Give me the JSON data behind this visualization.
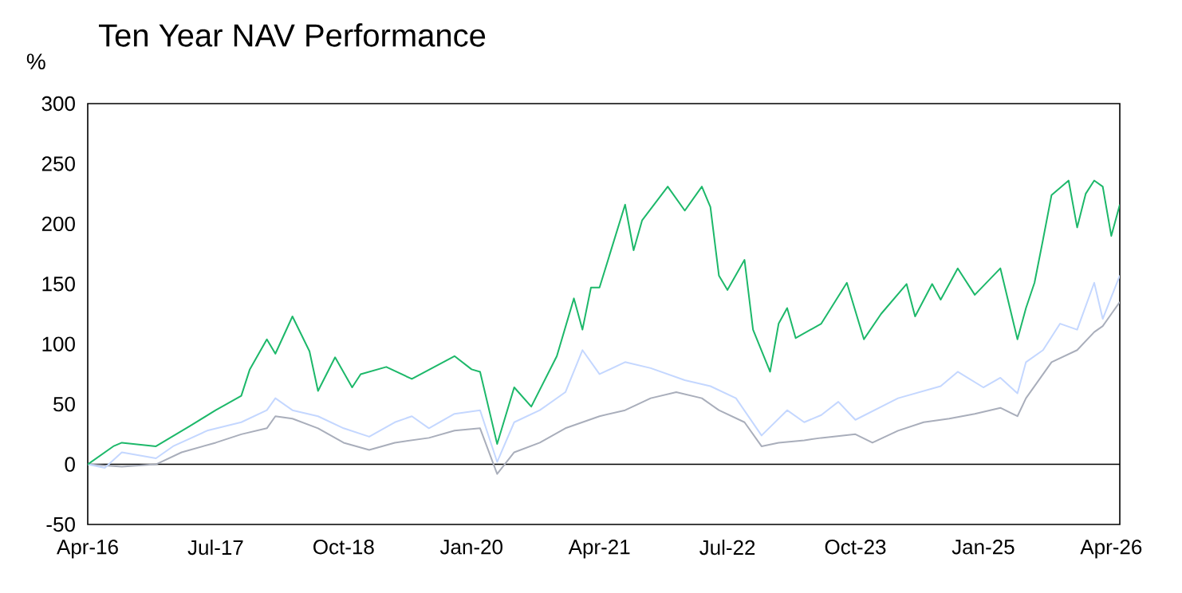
{
  "chart_data": {
    "type": "line",
    "title": "Ten Year NAV Performance",
    "ylabel": "%",
    "xlim": [
      "2016-04",
      "2026-05"
    ],
    "xticks": [
      {
        "value": "2016-04",
        "label": "Apr-16"
      },
      {
        "value": "2017-07",
        "label": "Jul-17"
      },
      {
        "value": "2018-10",
        "label": "Oct-18"
      },
      {
        "value": "2020-01",
        "label": "Jan-20"
      },
      {
        "value": "2021-04",
        "label": "Apr-21"
      },
      {
        "value": "2022-07",
        "label": "Jul-22"
      },
      {
        "value": "2023-10",
        "label": "Oct-23"
      },
      {
        "value": "2025-01",
        "label": "Jan-25"
      },
      {
        "value": "2026-04",
        "label": "Apr-26"
      }
    ],
    "ylim": [
      -50,
      300
    ],
    "yticks": [
      -50,
      0,
      50,
      100,
      150,
      200,
      250,
      300
    ],
    "grid": false,
    "marker": "none",
    "line_style": "solid",
    "ref_lines": [
      {
        "axis": "y",
        "value": 0,
        "color": "#000000"
      }
    ],
    "series": [
      {
        "color": "#1db86a",
        "x": [
          "2016-04",
          "2016-07",
          "2016-08",
          "2016-12",
          "2017-04",
          "2017-07",
          "2017-10",
          "2017-11",
          "2018-01",
          "2018-02",
          "2018-04",
          "2018-06",
          "2018-07",
          "2018-09",
          "2018-11",
          "2018-12",
          "2019-03",
          "2019-06",
          "2019-11",
          "2020-01",
          "2020-02",
          "2020-04",
          "2020-06",
          "2020-08",
          "2020-11",
          "2021-01",
          "2021-02",
          "2021-03",
          "2021-04",
          "2021-07",
          "2021-08",
          "2021-09",
          "2021-12",
          "2022-02",
          "2022-04",
          "2022-05",
          "2022-06",
          "2022-07",
          "2022-09",
          "2022-10",
          "2022-12",
          "2023-01",
          "2023-02",
          "2023-03",
          "2023-06",
          "2023-09",
          "2023-11",
          "2024-01",
          "2024-04",
          "2024-05",
          "2024-07",
          "2024-08",
          "2024-10",
          "2024-12",
          "2025-03",
          "2025-05",
          "2025-06",
          "2025-07",
          "2025-08",
          "2025-09",
          "2025-11",
          "2025-12",
          "2026-01",
          "2026-02",
          "2026-03",
          "2026-04",
          "2026-05"
        ],
        "values": [
          0,
          15,
          18,
          15,
          32,
          45,
          57,
          79,
          104,
          92,
          123,
          94,
          61,
          89,
          64,
          75,
          81,
          71,
          90,
          79,
          77,
          17,
          64,
          48,
          90,
          138,
          112,
          147,
          147,
          216,
          178,
          203,
          231,
          211,
          231,
          214,
          157,
          145,
          170,
          112,
          77,
          117,
          130,
          105,
          117,
          151,
          104,
          125,
          150,
          123,
          150,
          137,
          163,
          141,
          163,
          104,
          130,
          151,
          187,
          224,
          236,
          197,
          225,
          236,
          231,
          190,
          216
        ]
      },
      {
        "color": "#c4d7ff",
        "x": [
          "2016-04",
          "2016-06",
          "2016-08",
          "2016-12",
          "2017-02",
          "2017-06",
          "2017-10",
          "2018-01",
          "2018-02",
          "2018-04",
          "2018-07",
          "2018-10",
          "2019-01",
          "2019-04",
          "2019-06",
          "2019-08",
          "2019-11",
          "2020-02",
          "2020-04",
          "2020-06",
          "2020-09",
          "2020-12",
          "2021-02",
          "2021-04",
          "2021-07",
          "2021-10",
          "2022-02",
          "2022-05",
          "2022-08",
          "2022-11",
          "2023-02",
          "2023-04",
          "2023-06",
          "2023-08",
          "2023-10",
          "2024-03",
          "2024-08",
          "2024-10",
          "2025-01",
          "2025-03",
          "2025-05",
          "2025-06",
          "2025-08",
          "2025-10",
          "2025-12",
          "2026-02",
          "2026-03",
          "2026-05"
        ],
        "values": [
          0,
          -3,
          10,
          5,
          15,
          28,
          35,
          45,
          55,
          45,
          40,
          30,
          23,
          35,
          40,
          30,
          42,
          45,
          2,
          35,
          45,
          60,
          95,
          75,
          85,
          80,
          70,
          65,
          55,
          24,
          45,
          35,
          41,
          52,
          37,
          55,
          65,
          77,
          64,
          72,
          59,
          85,
          95,
          117,
          112,
          151,
          121,
          157
        ]
      },
      {
        "color": "#a9aebb",
        "x": [
          "2016-04",
          "2016-08",
          "2016-12",
          "2017-03",
          "2017-07",
          "2017-10",
          "2018-01",
          "2018-02",
          "2018-04",
          "2018-07",
          "2018-10",
          "2019-01",
          "2019-04",
          "2019-08",
          "2019-11",
          "2020-02",
          "2020-04",
          "2020-06",
          "2020-09",
          "2020-12",
          "2021-04",
          "2021-07",
          "2021-10",
          "2022-01",
          "2022-04",
          "2022-06",
          "2022-09",
          "2022-11",
          "2023-01",
          "2023-04",
          "2023-06",
          "2023-10",
          "2023-12",
          "2024-03",
          "2024-06",
          "2024-09",
          "2024-12",
          "2025-03",
          "2025-05",
          "2025-06",
          "2025-09",
          "2025-12",
          "2026-02",
          "2026-03",
          "2026-04",
          "2026-05"
        ],
        "values": [
          0,
          -2,
          0,
          10,
          18,
          25,
          30,
          40,
          38,
          30,
          18,
          12,
          18,
          22,
          28,
          30,
          -8,
          10,
          18,
          30,
          40,
          45,
          55,
          60,
          55,
          45,
          35,
          15,
          18,
          20,
          22,
          25,
          18,
          28,
          35,
          38,
          42,
          47,
          40,
          55,
          85,
          95,
          110,
          115,
          125,
          135
        ]
      }
    ]
  }
}
